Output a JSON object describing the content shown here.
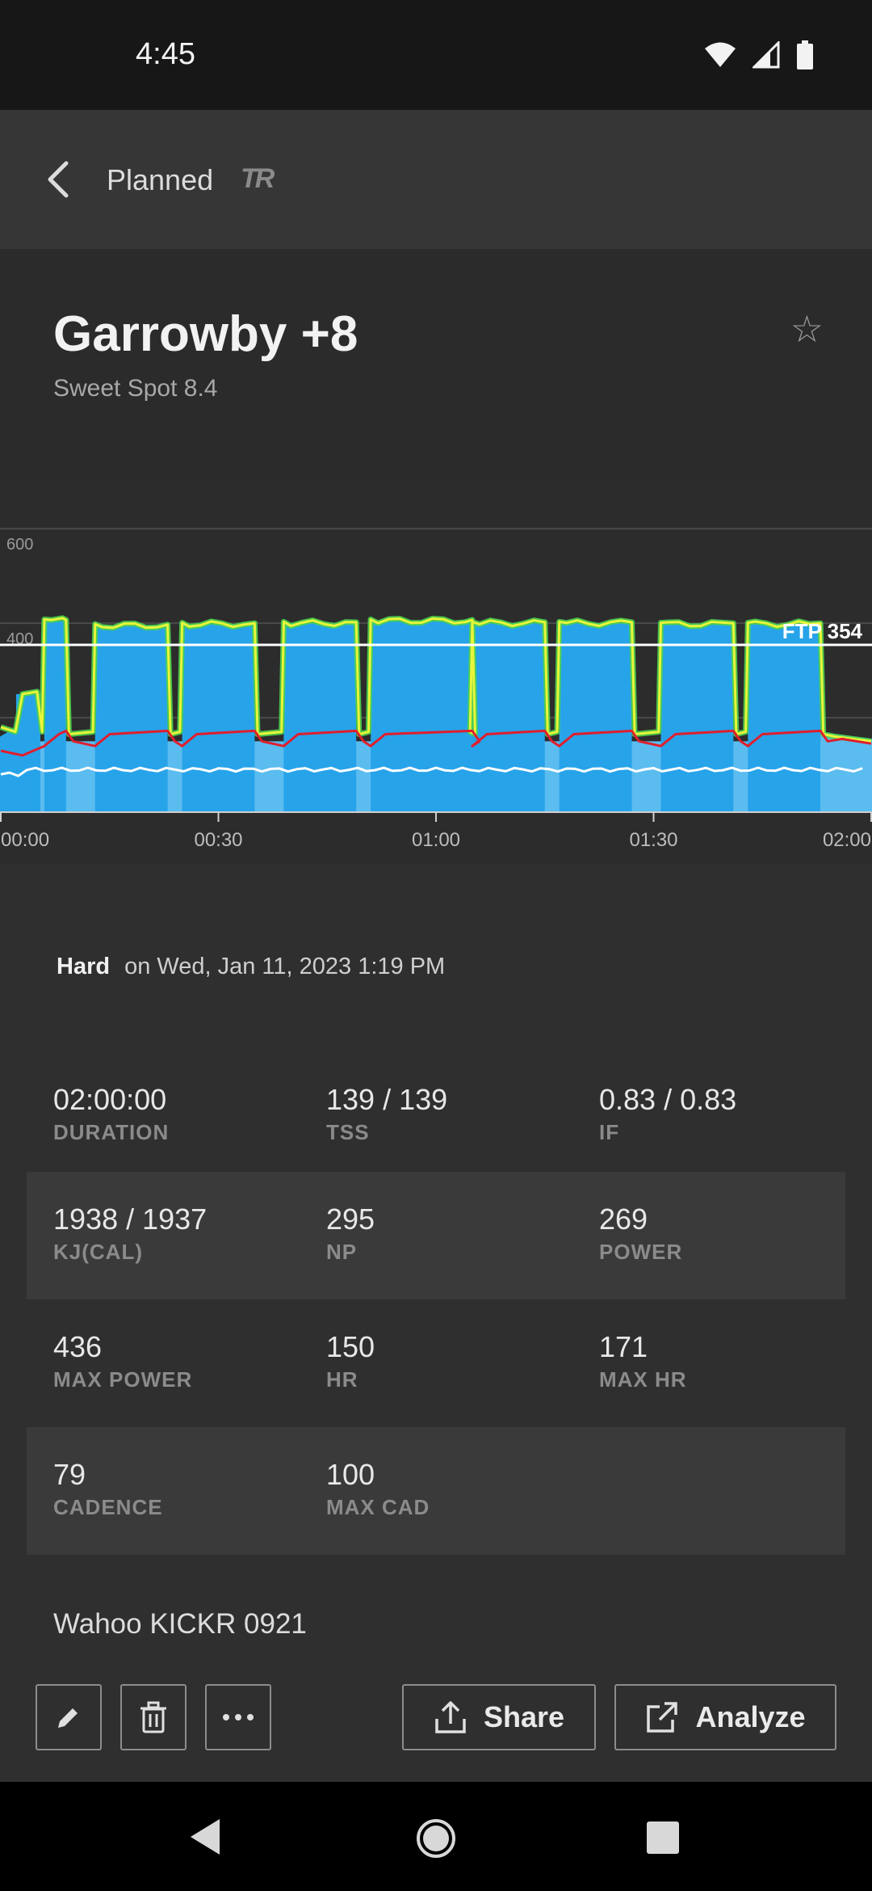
{
  "status_bar": {
    "time": "4:45"
  },
  "toolbar": {
    "title": "Planned",
    "logo_text": "TR"
  },
  "workout": {
    "title": "Garrowby +8",
    "subtitle": "Sweet Spot 8.4"
  },
  "chart_data": {
    "type": "area",
    "y_ticks": [
      "600",
      "400"
    ],
    "ftp_label": "FTP 354",
    "ftp_value": 354,
    "x_ticks": [
      "00:00",
      "00:30",
      "01:00",
      "01:30",
      "02:00"
    ],
    "ylim": [
      0,
      650
    ],
    "xlim_minutes": [
      0,
      120
    ],
    "intervals": [
      {
        "start": 6,
        "end": 9,
        "power": 405
      },
      {
        "start": 13,
        "end": 23,
        "power": 395
      },
      {
        "start": 25,
        "end": 35,
        "power": 398
      },
      {
        "start": 39,
        "end": 49,
        "power": 400
      },
      {
        "start": 51,
        "end": 65,
        "power": 405
      },
      {
        "start": 65,
        "end": 75,
        "power": 400
      },
      {
        "start": 77,
        "end": 87,
        "power": 400
      },
      {
        "start": 91,
        "end": 101,
        "power": 398
      },
      {
        "start": 103,
        "end": 113,
        "power": 398
      }
    ],
    "base_power": 150,
    "heart_rate_avg": 150,
    "cadence_avg": 79,
    "colors": {
      "target": "#27a3ea",
      "target_low": "#5bbcf0",
      "power": "#e8f53a",
      "power_glow": "#4dd24d",
      "hr": "#e01e2d",
      "cadence": "#ffffff"
    }
  },
  "effort": {
    "level": "Hard",
    "date": "on Wed, Jan 11, 2023 1:19 PM"
  },
  "stats": [
    [
      {
        "value": "02:00:00",
        "label": "DURATION"
      },
      {
        "value": "139 / 139",
        "label": "TSS"
      },
      {
        "value": "0.83 / 0.83",
        "label": "IF"
      }
    ],
    [
      {
        "value": "1938 / 1937",
        "label": "KJ(CAL)"
      },
      {
        "value": "295",
        "label": "NP"
      },
      {
        "value": "269",
        "label": "POWER"
      }
    ],
    [
      {
        "value": "436",
        "label": "MAX POWER"
      },
      {
        "value": "150",
        "label": "HR"
      },
      {
        "value": "171",
        "label": "MAX HR"
      }
    ],
    [
      {
        "value": "79",
        "label": "CADENCE"
      },
      {
        "value": "100",
        "label": "MAX CAD"
      }
    ]
  ],
  "device": "Wahoo KICKR 0921",
  "actions": {
    "share": "Share",
    "analyze": "Analyze"
  },
  "icons": {
    "back": "chevron-left-icon",
    "star": "star-outline-icon",
    "edit": "pencil-icon",
    "delete": "trash-icon",
    "more": "more-horizontal-icon",
    "share": "share-icon",
    "analyze": "external-link-icon"
  }
}
